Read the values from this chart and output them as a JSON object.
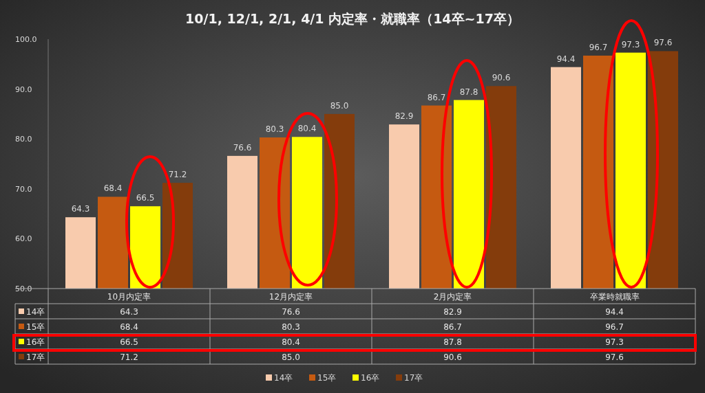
{
  "chart_data": {
    "type": "bar",
    "title": "10/1, 12/1, 2/1, 4/1 内定率・就職率（14卒~17卒）",
    "categories": [
      "10月内定率",
      "12月内定率",
      "2月内定率",
      "卒業時就職率"
    ],
    "series": [
      {
        "name": "14卒",
        "color": "#f8cbad",
        "values": [
          64.3,
          76.6,
          82.9,
          94.4
        ],
        "value_labels": [
          "64.3",
          "76.6",
          "82.9",
          "94.4"
        ]
      },
      {
        "name": "15卒",
        "color": "#c55a11",
        "values": [
          68.4,
          80.3,
          86.7,
          96.7
        ],
        "value_labels": [
          "68.4",
          "80.3",
          "86.7",
          "96.7"
        ]
      },
      {
        "name": "16卒",
        "color": "#ffff00",
        "values": [
          66.5,
          80.4,
          87.8,
          97.3
        ],
        "value_labels": [
          "66.5",
          "80.4",
          "87.8",
          "97.3"
        ]
      },
      {
        "name": "17卒",
        "color": "#843c0c",
        "values": [
          71.2,
          85.0,
          90.6,
          97.6
        ],
        "value_labels": [
          "71.2",
          "85.0",
          "90.6",
          "97.6"
        ]
      }
    ],
    "ylim": [
      50,
      100
    ],
    "yticks": [
      {
        "value": 50,
        "label": "50.0"
      },
      {
        "value": 60,
        "label": "60.0"
      },
      {
        "value": 70,
        "label": "70.0"
      },
      {
        "value": 80,
        "label": "80.0"
      },
      {
        "value": 90,
        "label": "90.0"
      },
      {
        "value": 100,
        "label": "100.0"
      }
    ],
    "legend": "bottom"
  }
}
